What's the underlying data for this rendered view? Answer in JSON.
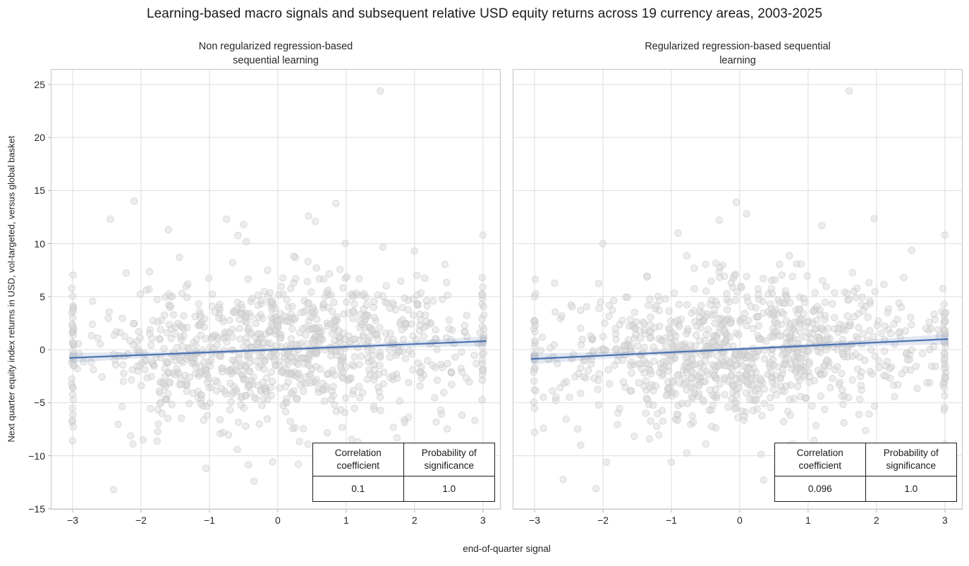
{
  "header": {
    "title": "Learning-based macro signals and subsequent relative USD equity returns across 19 currency areas, 2003-2025"
  },
  "axes": {
    "xlabel": "end-of-quarter signal",
    "ylabel": "Next quarter equity index returns in USD, vol-targeted, versus global basket"
  },
  "panels": [
    {
      "title_line1": "Non regularized regression-based",
      "title_line2": "sequential learning",
      "table": {
        "header_corr": "Correlation coefficient",
        "header_prob": "Probability of significance",
        "value_corr": "0.1",
        "value_prob": "1.0"
      }
    },
    {
      "title_line1": "Regularized regression-based sequential",
      "title_line2": "learning",
      "table": {
        "header_corr": "Correlation coefficient",
        "header_prob": "Probability of significance",
        "value_corr": "0.096",
        "value_prob": "1.0"
      }
    }
  ],
  "colors": {
    "background": "#ffffff",
    "grid": "#e0e0e0",
    "spine": "#cccccc",
    "tick_mark": "#b0b0b0",
    "point_fill": "#d6d6d6",
    "point_edge": "#c2c2c2",
    "regression_line": "#4c72b0",
    "ci_band": "#4c72b0",
    "text": "#262626",
    "table_border": "#1a1a1a"
  },
  "chart_data": [
    {
      "type": "scatter",
      "title": "Non regularized regression-based sequential learning",
      "xlabel": "end-of-quarter signal",
      "ylabel": "Next quarter equity index returns in USD, vol-targeted, versus global basket",
      "xlim": [
        -3.32,
        3.26
      ],
      "ylim": [
        -15.08,
        26.45
      ],
      "x_ticks": [
        -3,
        -2,
        -1,
        0,
        1,
        2,
        3
      ],
      "y_ticks": [
        -15,
        -10,
        -5,
        0,
        5,
        10,
        15,
        20,
        25
      ],
      "grid": true,
      "legend": null,
      "show_y_tick_labels": true,
      "point_cloud": {
        "n": 1000,
        "seed": 11,
        "x_sd": 1.45,
        "y_sd": 3.45,
        "x_clip": 3.0,
        "edge_jitter": 0.03,
        "edge_extra_per_side": 12,
        "edge_y_sd": 3.3
      },
      "regression": {
        "x0": -3.05,
        "y0": -0.78,
        "x1": 3.05,
        "y1": 0.8
      },
      "ci_halfwidth": {
        "center": 0.16,
        "edge": 0.48
      },
      "outliers": [
        [
          1.5,
          24.4
        ],
        [
          -2.1,
          14.0
        ],
        [
          0.85,
          13.8
        ],
        [
          -2.45,
          12.3
        ],
        [
          -0.75,
          12.3
        ],
        [
          0.45,
          12.6
        ],
        [
          0.55,
          12.1
        ],
        [
          3.0,
          10.8
        ],
        [
          -1.6,
          11.3
        ],
        [
          -0.5,
          11.8
        ],
        [
          -2.4,
          -13.2
        ],
        [
          -0.35,
          -12.4
        ],
        [
          1.35,
          -11.8
        ],
        [
          -1.05,
          -11.2
        ],
        [
          2.05,
          -10.3
        ],
        [
          0.3,
          -10.8
        ],
        [
          3.0,
          -9.4
        ],
        [
          -3.0,
          -8.6
        ],
        [
          2.4,
          -9.8
        ]
      ],
      "stats": {
        "correlation_coefficient": 0.1,
        "probability_of_significance": 1.0
      }
    },
    {
      "type": "scatter",
      "title": "Regularized regression-based sequential learning",
      "xlabel": "end-of-quarter signal",
      "ylabel": "Next quarter equity index returns in USD, vol-targeted, versus global basket",
      "xlim": [
        -3.32,
        3.26
      ],
      "ylim": [
        -15.08,
        26.45
      ],
      "x_ticks": [
        -3,
        -2,
        -1,
        0,
        1,
        2,
        3
      ],
      "y_ticks": [
        -15,
        -10,
        -5,
        0,
        5,
        10,
        15,
        20,
        25
      ],
      "grid": true,
      "legend": null,
      "show_y_tick_labels": false,
      "point_cloud": {
        "n": 1000,
        "seed": 29,
        "x_sd": 1.45,
        "y_sd": 3.45,
        "x_clip": 3.0,
        "edge_jitter": 0.03,
        "edge_extra_per_side": 10,
        "edge_y_sd": 3.2
      },
      "regression": {
        "x0": -3.05,
        "y0": -0.88,
        "x1": 3.05,
        "y1": 1.0
      },
      "ci_halfwidth": {
        "center": 0.16,
        "edge": 0.52
      },
      "outliers": [
        [
          1.6,
          24.4
        ],
        [
          -0.05,
          13.9
        ],
        [
          0.1,
          12.8
        ],
        [
          -0.3,
          12.2
        ],
        [
          1.2,
          11.7
        ],
        [
          3.0,
          10.8
        ],
        [
          -2.0,
          10.0
        ],
        [
          -0.9,
          11.0
        ],
        [
          -2.1,
          -13.1
        ],
        [
          0.35,
          -12.3
        ],
        [
          -1.0,
          -10.6
        ],
        [
          1.1,
          -11.2
        ],
        [
          2.6,
          -9.7
        ],
        [
          3.0,
          -8.9
        ],
        [
          -3.0,
          -7.8
        ]
      ],
      "stats": {
        "correlation_coefficient": 0.096,
        "probability_of_significance": 1.0
      }
    }
  ]
}
